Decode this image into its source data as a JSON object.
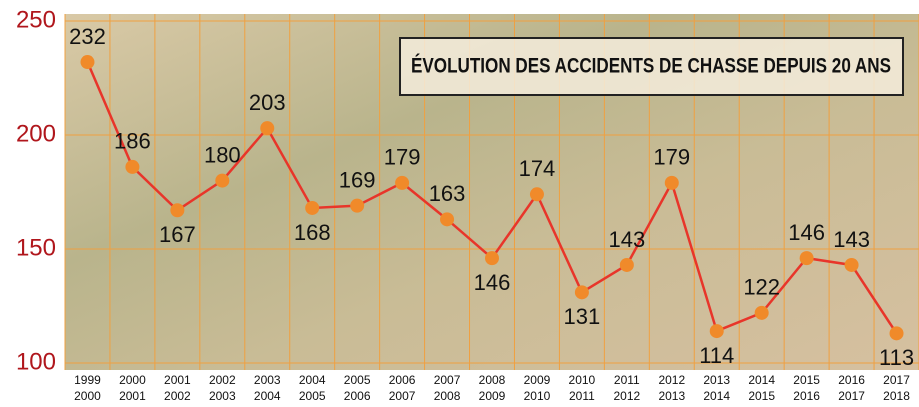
{
  "chart_data": {
    "type": "line",
    "title": "ÉVOLUTION DES ACCIDENTS DE CHASSE DEPUIS 20 ANS",
    "categories": [
      [
        "1999",
        "2000"
      ],
      [
        "2000",
        "2001"
      ],
      [
        "2001",
        "2002"
      ],
      [
        "2002",
        "2003"
      ],
      [
        "2003",
        "2004"
      ],
      [
        "2004",
        "2005"
      ],
      [
        "2005",
        "2006"
      ],
      [
        "2006",
        "2007"
      ],
      [
        "2007",
        "2008"
      ],
      [
        "2008",
        "2009"
      ],
      [
        "2009",
        "2010"
      ],
      [
        "2010",
        "2011"
      ],
      [
        "2011",
        "2012"
      ],
      [
        "2012",
        "2013"
      ],
      [
        "2013",
        "2014"
      ],
      [
        "2014",
        "2015"
      ],
      [
        "2015",
        "2016"
      ],
      [
        "2016",
        "2017"
      ],
      [
        "2017",
        "2018"
      ]
    ],
    "values": [
      232,
      186,
      167,
      180,
      203,
      168,
      169,
      179,
      163,
      146,
      174,
      131,
      143,
      179,
      114,
      122,
      146,
      143,
      113
    ],
    "color": "#e8352a",
    "marker_color": "#f08a2a",
    "ylim": [
      100,
      250
    ],
    "yticks": [
      100,
      150,
      200,
      250
    ],
    "grid": true
  }
}
